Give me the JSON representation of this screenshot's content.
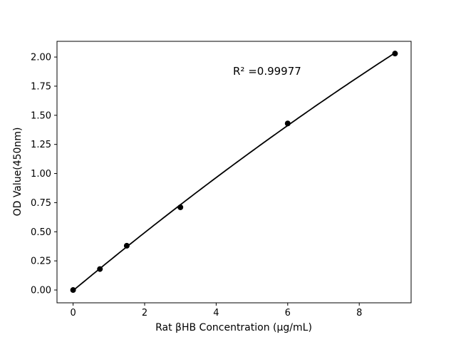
{
  "chart_data": {
    "type": "scatter",
    "title": "",
    "xlabel": "Rat βHB Concentration (μg/mL)",
    "ylabel": "OD Value(450nm)",
    "x": [
      0,
      0.75,
      1.5,
      3,
      6,
      9
    ],
    "y": [
      0.0,
      0.18,
      0.38,
      0.71,
      1.43,
      2.03
    ],
    "fit": "quadratic",
    "annotation": {
      "text": "R² =0.99977",
      "x": 4.5,
      "y": 1.835
    },
    "xlim": [
      -0.45,
      9.45
    ],
    "ylim": [
      -0.11,
      2.135
    ],
    "xticks": [
      0,
      2,
      4,
      6,
      8
    ],
    "xtick_labels": [
      "0",
      "2",
      "4",
      "6",
      "8"
    ],
    "yticks": [
      0.0,
      0.25,
      0.5,
      0.75,
      1.0,
      1.25,
      1.5,
      1.75,
      2.0
    ],
    "ytick_labels": [
      "0.00",
      "0.25",
      "0.50",
      "0.75",
      "1.00",
      "1.25",
      "1.50",
      "1.75",
      "2.00"
    ],
    "grid": false,
    "legend": null,
    "marker_color": "#000000",
    "line_color": "#000000",
    "axis_color": "#000000",
    "background": "#ffffff"
  }
}
